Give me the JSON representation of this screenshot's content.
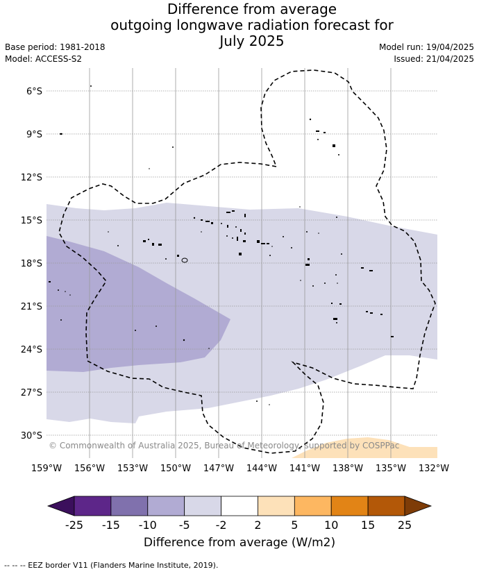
{
  "header": {
    "title_lines": [
      "Difference from average",
      "outgoing longwave radiation forecast for",
      "July 2025"
    ],
    "base_period": "Base period: 1981-2018",
    "model": "Model: ACCESS-S2",
    "model_run": "Model run: 19/04/2025",
    "issued": "Issued: 21/04/2025"
  },
  "map": {
    "lat_labels": [
      "6°S",
      "9°S",
      "12°S",
      "15°S",
      "18°S",
      "21°S",
      "24°S",
      "27°S",
      "30°S"
    ],
    "lon_labels": [
      "159°W",
      "156°W",
      "153°W",
      "150°W",
      "147°W",
      "144°W",
      "141°W",
      "138°W",
      "135°W",
      "132°W"
    ],
    "copyright": "© Commonwealth of Australia 2025, Bureau of Meteorology, supported by COSPPac",
    "colors": {
      "band_neg_5_to_neg_2": "#d8d8e8",
      "band_neg_10_to_neg_5": "#b1abd3",
      "band_2_to_5": "#fde1b9",
      "eez_border": "#000000",
      "grid": "#999999"
    }
  },
  "colorbar": {
    "ticks": [
      "-25",
      "-15",
      "-10",
      "-5",
      "-2",
      "2",
      "5",
      "10",
      "15",
      "25"
    ],
    "colors": [
      "#3b0f5c",
      "#5d2689",
      "#8071ad",
      "#b1abd3",
      "#d8d8e8",
      "#ffffff",
      "#fde1b9",
      "#fdb761",
      "#e28416",
      "#b35808",
      "#7e3c07"
    ],
    "label": "Difference from average (W/m2)"
  },
  "footer": {
    "legend_text": "--  --  -- EEZ border V11 (Flanders Marine Institute, 2019)."
  }
}
